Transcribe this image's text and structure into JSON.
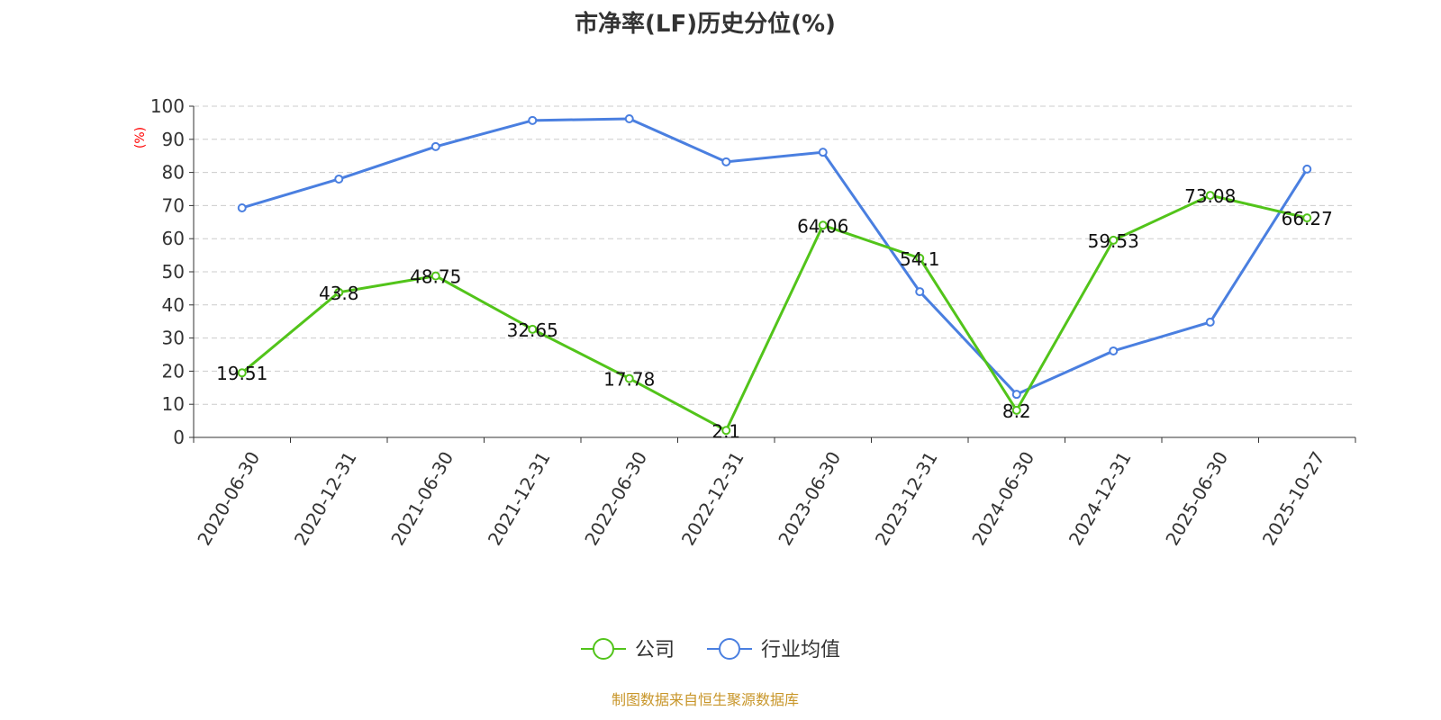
{
  "chart_data": {
    "type": "line",
    "title": "市净率(LF)历史分位(%)",
    "ylabel": "(%)",
    "ylim": [
      0,
      100
    ],
    "yticks": [
      0,
      10,
      20,
      30,
      40,
      50,
      60,
      70,
      80,
      90,
      100
    ],
    "grid": true,
    "legend_position": "bottom",
    "categories": [
      "2020-06-30",
      "2020-12-31",
      "2021-06-30",
      "2021-12-31",
      "2022-06-30",
      "2022-12-31",
      "2023-06-30",
      "2023-12-31",
      "2024-06-30",
      "2024-12-31",
      "2025-06-30",
      "2025-10-27"
    ],
    "series": [
      {
        "name": "公司",
        "color": "#52c41a",
        "labels": true,
        "values": [
          19.51,
          43.8,
          48.75,
          32.65,
          17.78,
          2.1,
          64.06,
          54.1,
          8.2,
          59.53,
          73.08,
          66.27
        ]
      },
      {
        "name": "行业均值",
        "color": "#4a7fe0",
        "labels": false,
        "values": [
          69.3,
          78.0,
          87.8,
          95.7,
          96.2,
          83.2,
          86.1,
          44.0,
          13.0,
          26.1,
          34.8,
          81.0
        ]
      }
    ]
  },
  "footer": "制图数据来自恒生聚源数据库"
}
